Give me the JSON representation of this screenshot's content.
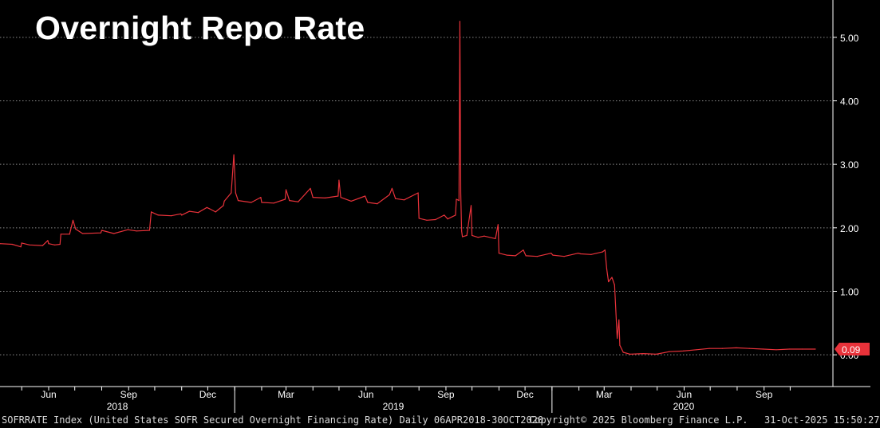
{
  "title": "Overnight Repo Rate",
  "footer": {
    "left": "SOFRRATE Index (United States SOFR Secured Overnight Financing Rate) Daily 06APR2018-30OCT2020",
    "center": "Copyright© 2025 Bloomberg Finance L.P.",
    "right": "31-Oct-2025 15:50:27"
  },
  "colors": {
    "background": "#000000",
    "line": "#e8323a",
    "grid": "#8a8a8a",
    "axis_text": "#ffffff",
    "last_value_bg": "#e8323a"
  },
  "chart_data": {
    "type": "line",
    "title": "Overnight Repo Rate",
    "x_range": [
      "2018-04-06",
      "2020-10-30"
    ],
    "ylim": [
      -0.5,
      5.55
    ],
    "yticks": [
      0,
      1,
      2,
      3,
      4,
      5
    ],
    "ytick_labels": [
      "0.00",
      "1.00",
      "2.00",
      "3.00",
      "4.00",
      "5.00"
    ],
    "y_axis_side": "right",
    "grid": "horizontal dotted",
    "x_month_ticks": [
      {
        "date": "2018-05-01",
        "label": ""
      },
      {
        "date": "2018-06-01",
        "label": "Jun"
      },
      {
        "date": "2018-07-01",
        "label": ""
      },
      {
        "date": "2018-08-01",
        "label": ""
      },
      {
        "date": "2018-09-01",
        "label": "Sep"
      },
      {
        "date": "2018-10-01",
        "label": ""
      },
      {
        "date": "2018-11-01",
        "label": ""
      },
      {
        "date": "2018-12-01",
        "label": "Dec"
      },
      {
        "date": "2019-01-01",
        "label": ""
      },
      {
        "date": "2019-02-01",
        "label": ""
      },
      {
        "date": "2019-03-01",
        "label": "Mar"
      },
      {
        "date": "2019-04-01",
        "label": ""
      },
      {
        "date": "2019-05-01",
        "label": ""
      },
      {
        "date": "2019-06-01",
        "label": "Jun"
      },
      {
        "date": "2019-07-01",
        "label": ""
      },
      {
        "date": "2019-08-01",
        "label": ""
      },
      {
        "date": "2019-09-01",
        "label": "Sep"
      },
      {
        "date": "2019-10-01",
        "label": ""
      },
      {
        "date": "2019-11-01",
        "label": ""
      },
      {
        "date": "2019-12-01",
        "label": "Dec"
      },
      {
        "date": "2020-01-01",
        "label": ""
      },
      {
        "date": "2020-02-01",
        "label": ""
      },
      {
        "date": "2020-03-01",
        "label": "Mar"
      },
      {
        "date": "2020-04-01",
        "label": ""
      },
      {
        "date": "2020-05-01",
        "label": ""
      },
      {
        "date": "2020-06-01",
        "label": "Jun"
      },
      {
        "date": "2020-07-01",
        "label": ""
      },
      {
        "date": "2020-08-01",
        "label": ""
      },
      {
        "date": "2020-09-01",
        "label": "Sep"
      },
      {
        "date": "2020-10-01",
        "label": ""
      }
    ],
    "year_labels": [
      {
        "label": "2018",
        "from": "2018-04-06",
        "to": "2019-01-01"
      },
      {
        "label": "2019",
        "from": "2019-01-01",
        "to": "2020-01-01"
      },
      {
        "label": "2020",
        "from": "2020-01-01",
        "to": "2020-10-30"
      }
    ],
    "last_value": 0.09,
    "last_value_label": "0.09",
    "series": [
      {
        "color": "#e8323a",
        "points": [
          [
            "2018-04-06",
            1.75
          ],
          [
            "2018-04-20",
            1.74
          ],
          [
            "2018-04-30",
            1.7
          ],
          [
            "2018-05-01",
            1.76
          ],
          [
            "2018-05-10",
            1.73
          ],
          [
            "2018-05-25",
            1.72
          ],
          [
            "2018-05-31",
            1.8
          ],
          [
            "2018-06-01",
            1.75
          ],
          [
            "2018-06-08",
            1.73
          ],
          [
            "2018-06-14",
            1.74
          ],
          [
            "2018-06-15",
            1.9
          ],
          [
            "2018-06-25",
            1.9
          ],
          [
            "2018-06-29",
            2.12
          ],
          [
            "2018-07-02",
            1.98
          ],
          [
            "2018-07-10",
            1.91
          ],
          [
            "2018-07-31",
            1.92
          ],
          [
            "2018-08-01",
            1.96
          ],
          [
            "2018-08-15",
            1.91
          ],
          [
            "2018-08-31",
            1.97
          ],
          [
            "2018-09-10",
            1.95
          ],
          [
            "2018-09-25",
            1.96
          ],
          [
            "2018-09-27",
            2.25
          ],
          [
            "2018-10-05",
            2.2
          ],
          [
            "2018-10-20",
            2.19
          ],
          [
            "2018-10-31",
            2.22
          ],
          [
            "2018-11-01",
            2.2
          ],
          [
            "2018-11-10",
            2.26
          ],
          [
            "2018-11-20",
            2.24
          ],
          [
            "2018-11-30",
            2.32
          ],
          [
            "2018-12-03",
            2.3
          ],
          [
            "2018-12-10",
            2.25
          ],
          [
            "2018-12-19",
            2.35
          ],
          [
            "2018-12-20",
            2.42
          ],
          [
            "2018-12-28",
            2.55
          ],
          [
            "2018-12-31",
            3.15
          ],
          [
            "2019-01-02",
            2.55
          ],
          [
            "2019-01-05",
            2.43
          ],
          [
            "2019-01-20",
            2.4
          ],
          [
            "2019-01-31",
            2.48
          ],
          [
            "2019-02-01",
            2.4
          ],
          [
            "2019-02-15",
            2.39
          ],
          [
            "2019-02-28",
            2.45
          ],
          [
            "2019-03-01",
            2.6
          ],
          [
            "2019-03-05",
            2.43
          ],
          [
            "2019-03-15",
            2.41
          ],
          [
            "2019-03-29",
            2.62
          ],
          [
            "2019-04-01",
            2.48
          ],
          [
            "2019-04-15",
            2.47
          ],
          [
            "2019-04-30",
            2.5
          ],
          [
            "2019-05-01",
            2.75
          ],
          [
            "2019-05-03",
            2.48
          ],
          [
            "2019-05-15",
            2.42
          ],
          [
            "2019-05-31",
            2.5
          ],
          [
            "2019-06-03",
            2.4
          ],
          [
            "2019-06-14",
            2.38
          ],
          [
            "2019-06-28",
            2.52
          ],
          [
            "2019-07-01",
            2.62
          ],
          [
            "2019-07-05",
            2.46
          ],
          [
            "2019-07-15",
            2.44
          ],
          [
            "2019-07-31",
            2.55
          ],
          [
            "2019-08-01",
            2.15
          ],
          [
            "2019-08-10",
            2.12
          ],
          [
            "2019-08-20",
            2.13
          ],
          [
            "2019-08-30",
            2.2
          ],
          [
            "2019-09-03",
            2.14
          ],
          [
            "2019-09-12",
            2.2
          ],
          [
            "2019-09-13",
            2.45
          ],
          [
            "2019-09-16",
            2.43
          ],
          [
            "2019-09-17",
            5.25
          ],
          [
            "2019-09-18",
            2.55
          ],
          [
            "2019-09-19",
            1.95
          ],
          [
            "2019-09-20",
            1.86
          ],
          [
            "2019-09-25",
            1.88
          ],
          [
            "2019-09-30",
            2.35
          ],
          [
            "2019-10-01",
            1.88
          ],
          [
            "2019-10-08",
            1.85
          ],
          [
            "2019-10-15",
            1.87
          ],
          [
            "2019-10-28",
            1.83
          ],
          [
            "2019-10-31",
            2.05
          ],
          [
            "2019-11-01",
            1.6
          ],
          [
            "2019-11-10",
            1.57
          ],
          [
            "2019-11-20",
            1.56
          ],
          [
            "2019-11-29",
            1.65
          ],
          [
            "2019-12-02",
            1.56
          ],
          [
            "2019-12-15",
            1.55
          ],
          [
            "2019-12-31",
            1.6
          ],
          [
            "2020-01-02",
            1.57
          ],
          [
            "2020-01-15",
            1.55
          ],
          [
            "2020-01-31",
            1.6
          ],
          [
            "2020-02-03",
            1.59
          ],
          [
            "2020-02-15",
            1.58
          ],
          [
            "2020-02-28",
            1.62
          ],
          [
            "2020-03-02",
            1.65
          ],
          [
            "2020-03-04",
            1.35
          ],
          [
            "2020-03-06",
            1.15
          ],
          [
            "2020-03-10",
            1.22
          ],
          [
            "2020-03-13",
            1.1
          ],
          [
            "2020-03-16",
            0.26
          ],
          [
            "2020-03-18",
            0.55
          ],
          [
            "2020-03-19",
            0.15
          ],
          [
            "2020-03-23",
            0.04
          ],
          [
            "2020-03-31",
            0.01
          ],
          [
            "2020-04-15",
            0.02
          ],
          [
            "2020-04-30",
            0.01
          ],
          [
            "2020-05-15",
            0.05
          ],
          [
            "2020-05-31",
            0.06
          ],
          [
            "2020-06-15",
            0.08
          ],
          [
            "2020-06-30",
            0.1
          ],
          [
            "2020-07-15",
            0.1
          ],
          [
            "2020-07-31",
            0.11
          ],
          [
            "2020-08-15",
            0.1
          ],
          [
            "2020-08-31",
            0.09
          ],
          [
            "2020-09-15",
            0.08
          ],
          [
            "2020-09-30",
            0.09
          ],
          [
            "2020-10-15",
            0.09
          ],
          [
            "2020-10-30",
            0.09
          ]
        ]
      }
    ]
  }
}
